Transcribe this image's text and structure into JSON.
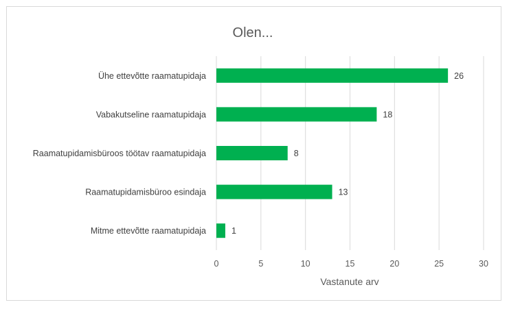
{
  "chart_data": {
    "type": "bar",
    "orientation": "horizontal",
    "title": "Olen...",
    "xlabel": "Vastanute arv",
    "ylabel": "",
    "categories": [
      "Ühe ettevõtte raamatupidaja",
      "Vabakutseline raamatupidaja",
      "Raamatupidamisbüroos töötav raamatupidaja",
      "Raamatupidamisbüroo esindaja",
      "Mitme ettevõtte raamatupidaja"
    ],
    "values": [
      26,
      18,
      8,
      13,
      1
    ],
    "xlim": [
      0,
      30
    ],
    "xticks": [
      0,
      5,
      10,
      15,
      20,
      25,
      30
    ],
    "grid": true,
    "legend": "none",
    "bar_color": "#00b050",
    "grid_color": "#d9d9d9"
  }
}
